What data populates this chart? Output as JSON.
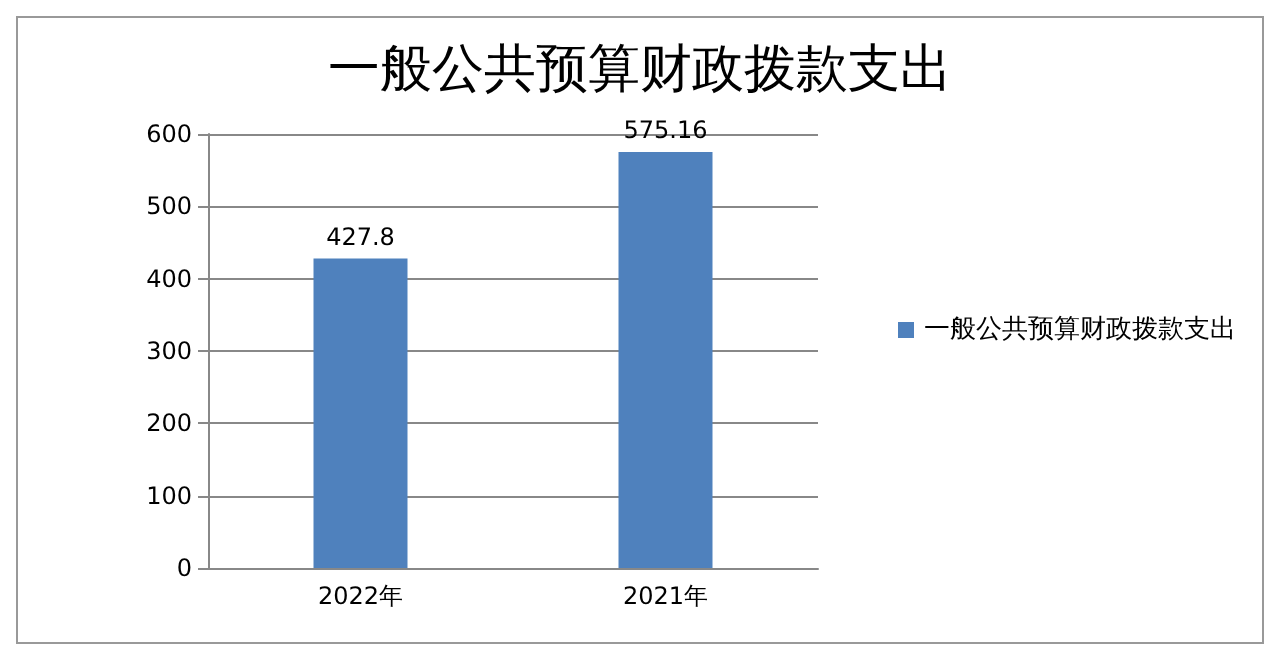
{
  "chart_data": {
    "type": "bar",
    "title": "一般公共预算财政拨款支出",
    "categories": [
      "2022年",
      "2021年"
    ],
    "series": [
      {
        "name": "一般公共预算财政拨款支出",
        "color": "#4f81bd",
        "values": [
          427.8,
          575.16
        ]
      }
    ],
    "ylim": [
      0,
      600
    ],
    "yticks": [
      0,
      100,
      200,
      300,
      400,
      500,
      600
    ],
    "grid": "y",
    "legend": "right",
    "data_labels": true
  }
}
